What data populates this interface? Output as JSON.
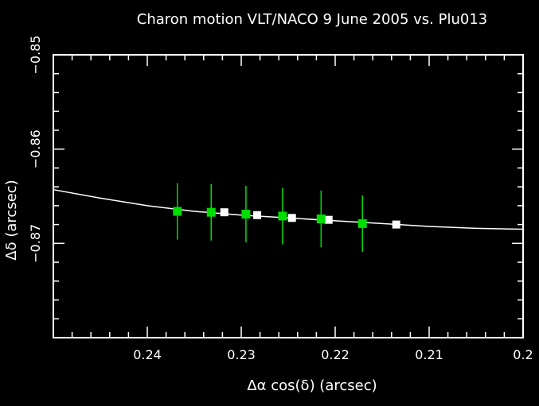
{
  "chart_data": {
    "type": "scatter",
    "title": "Charon motion VLT/NACO 9 June 2005 vs. Plu013",
    "xlabel": "Δα cos(δ) (arcsec)",
    "ylabel": "Δδ (arcsec)",
    "xlim": [
      0.25,
      0.2
    ],
    "ylim": [
      -0.88,
      -0.85
    ],
    "x_reversed": true,
    "grid": false,
    "x_ticks_major": [
      0.24,
      0.23,
      0.22,
      0.21,
      0.2
    ],
    "x_tick_labels": [
      "0.24",
      "0.23",
      "0.22",
      "0.21",
      "0.2"
    ],
    "y_ticks_major": [
      -0.85,
      -0.86,
      -0.87
    ],
    "y_tick_labels": [
      "−0.85",
      "−0.86",
      "−0.87"
    ],
    "colors": {
      "background": "#000000",
      "axes": "#ffffff",
      "fit_line": "#ffffff",
      "observed": "#00dd00",
      "model": "#ffffff"
    },
    "series": [
      {
        "kind": "errorbar",
        "marker": "square",
        "color": "#00dd00",
        "points": [
          {
            "x": 0.2368,
            "y": -0.8666,
            "yerr": 0.003
          },
          {
            "x": 0.2332,
            "y": -0.8667,
            "yerr": 0.003
          },
          {
            "x": 0.2295,
            "y": -0.8669,
            "yerr": 0.003
          },
          {
            "x": 0.2256,
            "y": -0.8671,
            "yerr": 0.003
          },
          {
            "x": 0.2215,
            "y": -0.8674,
            "yerr": 0.003
          },
          {
            "x": 0.2171,
            "y": -0.8679,
            "yerr": 0.003
          }
        ]
      },
      {
        "kind": "points",
        "marker": "square",
        "color": "#ffffff",
        "points": [
          {
            "x": 0.2318,
            "y": -0.8667
          },
          {
            "x": 0.2283,
            "y": -0.867
          },
          {
            "x": 0.2246,
            "y": -0.8673
          },
          {
            "x": 0.2207,
            "y": -0.8675
          },
          {
            "x": 0.2135,
            "y": -0.868
          }
        ]
      },
      {
        "kind": "line",
        "color": "#ffffff",
        "points": [
          {
            "x": 0.25,
            "y": -0.8643
          },
          {
            "x": 0.245,
            "y": -0.8652
          },
          {
            "x": 0.24,
            "y": -0.866
          },
          {
            "x": 0.235,
            "y": -0.8666
          },
          {
            "x": 0.23,
            "y": -0.867
          },
          {
            "x": 0.225,
            "y": -0.8673
          },
          {
            "x": 0.22,
            "y": -0.8676
          },
          {
            "x": 0.215,
            "y": -0.8679
          },
          {
            "x": 0.21,
            "y": -0.8682
          },
          {
            "x": 0.205,
            "y": -0.8684
          },
          {
            "x": 0.2,
            "y": -0.8685
          }
        ]
      }
    ]
  }
}
